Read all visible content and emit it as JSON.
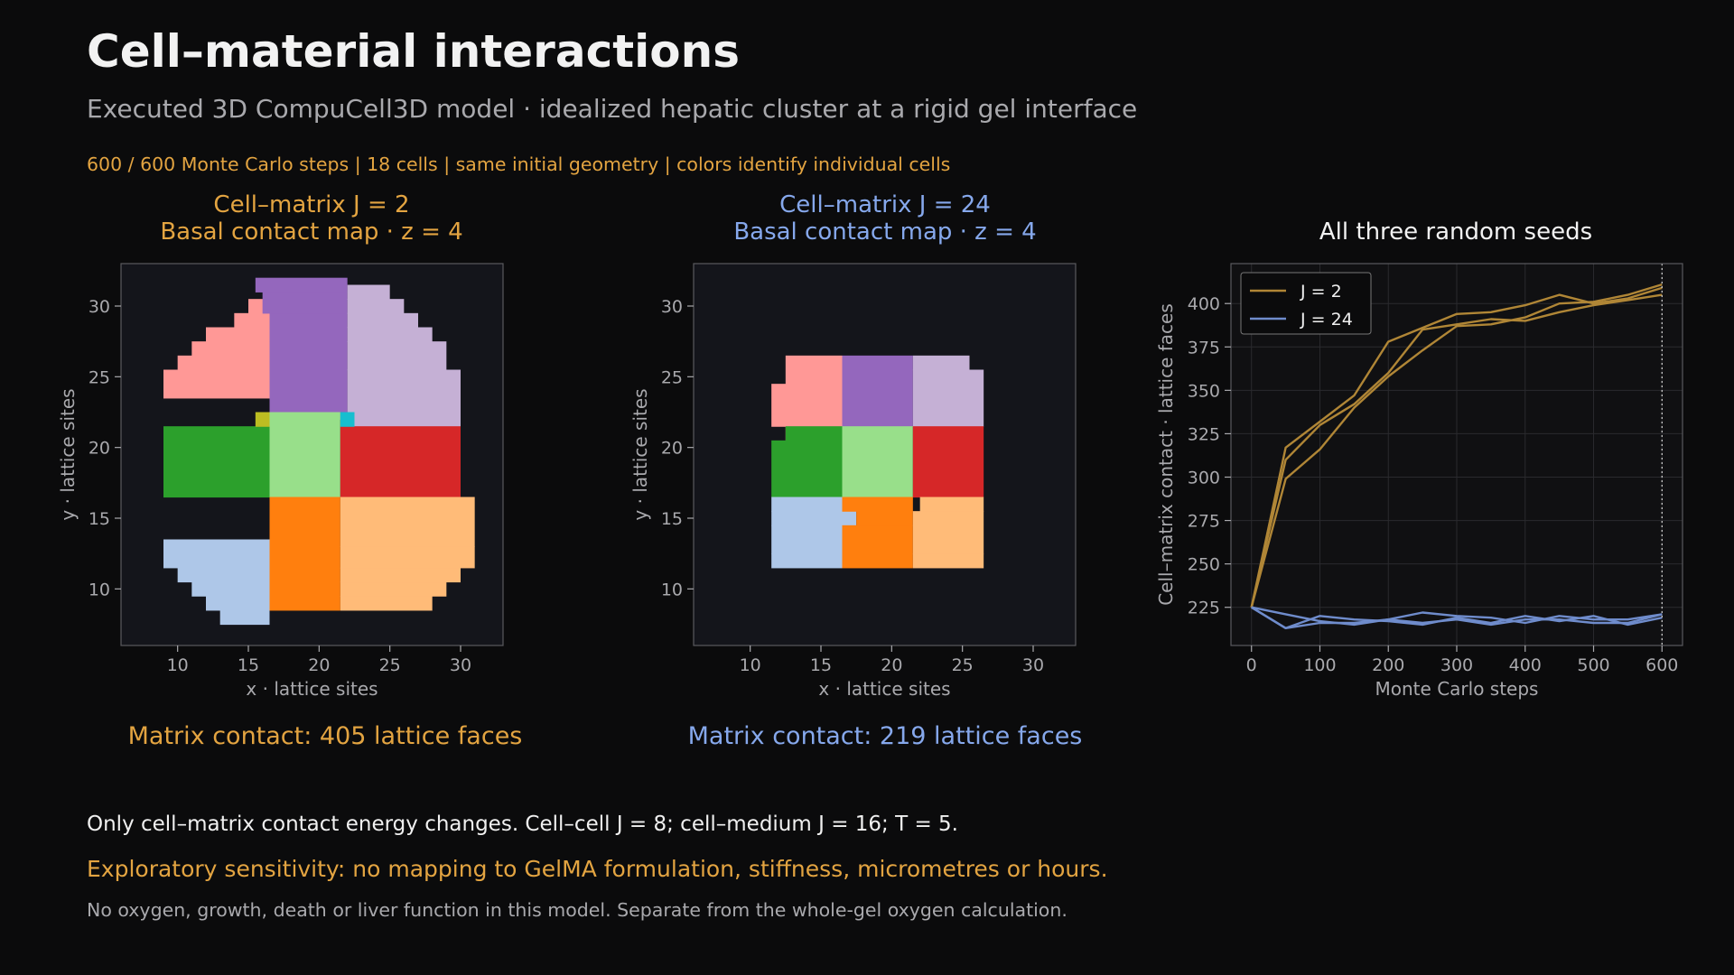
{
  "header": {
    "title": "Cell–material interactions",
    "subtitle": "Executed 3D CompuCell3D model · idealized hepatic cluster at a rigid gel interface",
    "meta": "600 / 600 Monte Carlo steps  |  18 cells  |  same initial geometry  |  colors identify individual cells"
  },
  "notes": {
    "line1": "Only cell–matrix contact energy changes. Cell–cell J = 8; cell–medium J = 16; T = 5.",
    "line2": "Exploratory sensitivity: no mapping to GelMA formulation, stiffness, micrometres or hours.",
    "line3": "No oxygen, growth, death or liver function in this model. Separate from the whole-gel oxygen calculation."
  },
  "colors": {
    "orange_accent": "#e3a441",
    "blue_accent": "#86a8ec",
    "plot_bg": "#14151b",
    "line_j2": "#b08636",
    "line_j24": "#6f8ccc"
  },
  "chart_data": [
    {
      "type": "heatmap",
      "title": "Cell–matrix J = 2",
      "subtitle": "Basal contact map · z = 4",
      "xlabel": "x · lattice sites",
      "ylabel": "y · lattice sites",
      "xlim": [
        6,
        33
      ],
      "ylim": [
        6,
        33
      ],
      "xticks": [
        10,
        15,
        20,
        25,
        30
      ],
      "yticks": [
        10,
        15,
        20,
        25,
        30
      ],
      "caption": "Matrix contact: 405 lattice faces",
      "cells": [
        {
          "color": "#ff9896",
          "rows": [
            [
              23.5,
              22,
              16.5
            ],
            [
              25.5,
              9,
              16.5
            ],
            [
              26.5,
              10,
              16.5
            ],
            [
              27.5,
              11,
              16.5
            ],
            [
              28.5,
              12,
              16.5
            ],
            [
              29.5,
              14,
              16.5
            ],
            [
              30.5,
              15,
              16.5
            ],
            [
              31.5,
              0,
              0
            ]
          ]
        },
        {
          "color": "#9467bd",
          "rows": [
            [
              22,
              17.5,
              22
            ],
            [
              29.5,
              16.5,
              22
            ],
            [
              31,
              16,
              22
            ],
            [
              32,
              15.5,
              22
            ]
          ]
        },
        {
          "color": "#c5b0d5",
          "rows": [
            [
              21.5,
              22,
              30
            ],
            [
              25.5,
              22,
              30
            ],
            [
              27.5,
              22,
              29
            ],
            [
              28.5,
              22,
              28
            ],
            [
              29.5,
              22,
              27
            ],
            [
              30.5,
              22,
              26
            ],
            [
              31.5,
              22,
              25
            ]
          ]
        },
        {
          "color": "#2ca02c",
          "rows": [
            [
              16.5,
              9,
              16.5
            ],
            [
              21.5,
              9,
              16.5
            ]
          ]
        },
        {
          "color": "#98df8a",
          "rows": [
            [
              16.5,
              16.5,
              21.5
            ],
            [
              22.5,
              16.5,
              21.5
            ]
          ]
        },
        {
          "color": "#d62728",
          "rows": [
            [
              16.5,
              21.5,
              30
            ],
            [
              21.5,
              21.5,
              30
            ]
          ]
        },
        {
          "color": "#aec7e8",
          "rows": [
            [
              7.5,
              14,
              17.5
            ],
            [
              8.5,
              13,
              16.5
            ],
            [
              9.5,
              12,
              16.5
            ],
            [
              10.5,
              11,
              16.5
            ],
            [
              11.5,
              10,
              16.5
            ],
            [
              12.5,
              9,
              16.5
            ],
            [
              13.5,
              9,
              16.5
            ]
          ]
        },
        {
          "color": "#ff7f0e",
          "rows": [
            [
              8.5,
              16.5,
              21.5
            ],
            [
              16.5,
              16.5,
              21.5
            ]
          ]
        },
        {
          "color": "#ffbb78",
          "rows": [
            [
              8.5,
              21.5,
              27
            ],
            [
              9.5,
              21.5,
              28
            ],
            [
              10.5,
              21.5,
              29
            ],
            [
              11.5,
              21.5,
              30
            ],
            [
              13,
              21.5,
              31
            ],
            [
              16.5,
              21.5,
              31
            ]
          ]
        },
        {
          "color": "#bcbd22",
          "rows": [
            [
              21.5,
              15.5,
              16.5
            ],
            [
              22.5,
              15.5,
              16.5
            ]
          ]
        },
        {
          "color": "#17becf",
          "rows": [
            [
              21.5,
              21.5,
              22.5
            ],
            [
              22.5,
              21.5,
              22.5
            ]
          ]
        }
      ]
    },
    {
      "type": "heatmap",
      "title": "Cell–matrix J = 24",
      "subtitle": "Basal contact map · z = 4",
      "xlabel": "x · lattice sites",
      "ylabel": "y · lattice sites",
      "xlim": [
        6,
        33
      ],
      "ylim": [
        6,
        33
      ],
      "xticks": [
        10,
        15,
        20,
        25,
        30
      ],
      "yticks": [
        10,
        15,
        20,
        25,
        30
      ],
      "caption": "Matrix contact: 219 lattice faces",
      "cells": [
        {
          "color": "#ff9896",
          "rows": [
            [
              20.5,
              11.5,
              16.5
            ],
            [
              21.5,
              12.5,
              16.5
            ],
            [
              24.5,
              11.5,
              16.5
            ],
            [
              26.5,
              12.5,
              16.5
            ]
          ]
        },
        {
          "color": "#9467bd",
          "rows": [
            [
              21.5,
              16.5,
              21.5
            ],
            [
              26.5,
              16.5,
              21.5
            ]
          ]
        },
        {
          "color": "#c5b0d5",
          "rows": [
            [
              21.5,
              21.5,
              26.5
            ],
            [
              25.5,
              21.5,
              26.5
            ],
            [
              26.5,
              21.5,
              25.5
            ]
          ]
        },
        {
          "color": "#2ca02c",
          "rows": [
            [
              16.5,
              11.5,
              16.5
            ],
            [
              20.5,
              11.5,
              16.5
            ],
            [
              21.5,
              12.5,
              16.5
            ]
          ]
        },
        {
          "color": "#98df8a",
          "rows": [
            [
              16.5,
              16.5,
              21.5
            ],
            [
              21.5,
              16.5,
              21.5
            ]
          ]
        },
        {
          "color": "#d62728",
          "rows": [
            [
              16.5,
              21.5,
              26.5
            ],
            [
              21.5,
              21.5,
              26.5
            ]
          ]
        },
        {
          "color": "#aec7e8",
          "rows": [
            [
              11.5,
              13.5,
              16.5
            ],
            [
              12.5,
              11.5,
              16.5
            ],
            [
              14.5,
              11.5,
              16.5
            ],
            [
              15.5,
              11.5,
              17.5
            ],
            [
              16.5,
              11.5,
              16.5
            ]
          ]
        },
        {
          "color": "#ff7f0e",
          "rows": [
            [
              11.5,
              16.5,
              21.5
            ],
            [
              14.5,
              16.5,
              21.5
            ],
            [
              15.5,
              17.5,
              21.5
            ],
            [
              16.5,
              16.5,
              21.5
            ]
          ]
        },
        {
          "color": "#ffbb78",
          "rows": [
            [
              11.5,
              21.5,
              25.5
            ],
            [
              12.5,
              21.5,
              26.5
            ],
            [
              15.5,
              21.5,
              26.5
            ],
            [
              16.5,
              22,
              26.5
            ]
          ]
        }
      ]
    },
    {
      "type": "line",
      "title": "All three random seeds",
      "xlabel": "Monte Carlo steps",
      "ylabel": "Cell–matrix contact · lattice faces",
      "xlim": [
        -30,
        630
      ],
      "ylim": [
        203,
        423
      ],
      "xticks": [
        0,
        100,
        200,
        300,
        400,
        500,
        600
      ],
      "yticks": [
        225,
        250,
        275,
        300,
        325,
        350,
        375,
        400
      ],
      "grid": true,
      "legend_position": "top-left",
      "marker_x": 600,
      "x": [
        0,
        50,
        100,
        150,
        200,
        250,
        300,
        350,
        400,
        450,
        500,
        550,
        600
      ],
      "legend": [
        {
          "label": "J = 2",
          "color": "#b08636"
        },
        {
          "label": "J = 24",
          "color": "#6f8ccc"
        }
      ],
      "series": [
        {
          "group": "J = 2",
          "color": "#b08636",
          "values": [
            225,
            317,
            332,
            347,
            378,
            386,
            394,
            395,
            399,
            405,
            400,
            403,
            409
          ]
        },
        {
          "group": "J = 2",
          "color": "#b08636",
          "values": [
            225,
            310,
            330,
            342,
            360,
            385,
            388,
            391,
            390,
            395,
            399,
            402,
            405
          ]
        },
        {
          "group": "J = 2",
          "color": "#b08636",
          "values": [
            225,
            299,
            316,
            340,
            358,
            373,
            387,
            388,
            392,
            400,
            401,
            405,
            411
          ]
        },
        {
          "group": "J = 24",
          "color": "#6f8ccc",
          "values": [
            225,
            213,
            216,
            216,
            218,
            222,
            220,
            219,
            216,
            220,
            218,
            218,
            221
          ]
        },
        {
          "group": "J = 24",
          "color": "#6f8ccc",
          "values": [
            225,
            213,
            220,
            218,
            217,
            215,
            219,
            216,
            220,
            217,
            220,
            215,
            219
          ]
        },
        {
          "group": "J = 24",
          "color": "#6f8ccc",
          "values": [
            225,
            221,
            217,
            215,
            218,
            216,
            218,
            215,
            218,
            218,
            216,
            216,
            221
          ]
        }
      ]
    }
  ]
}
